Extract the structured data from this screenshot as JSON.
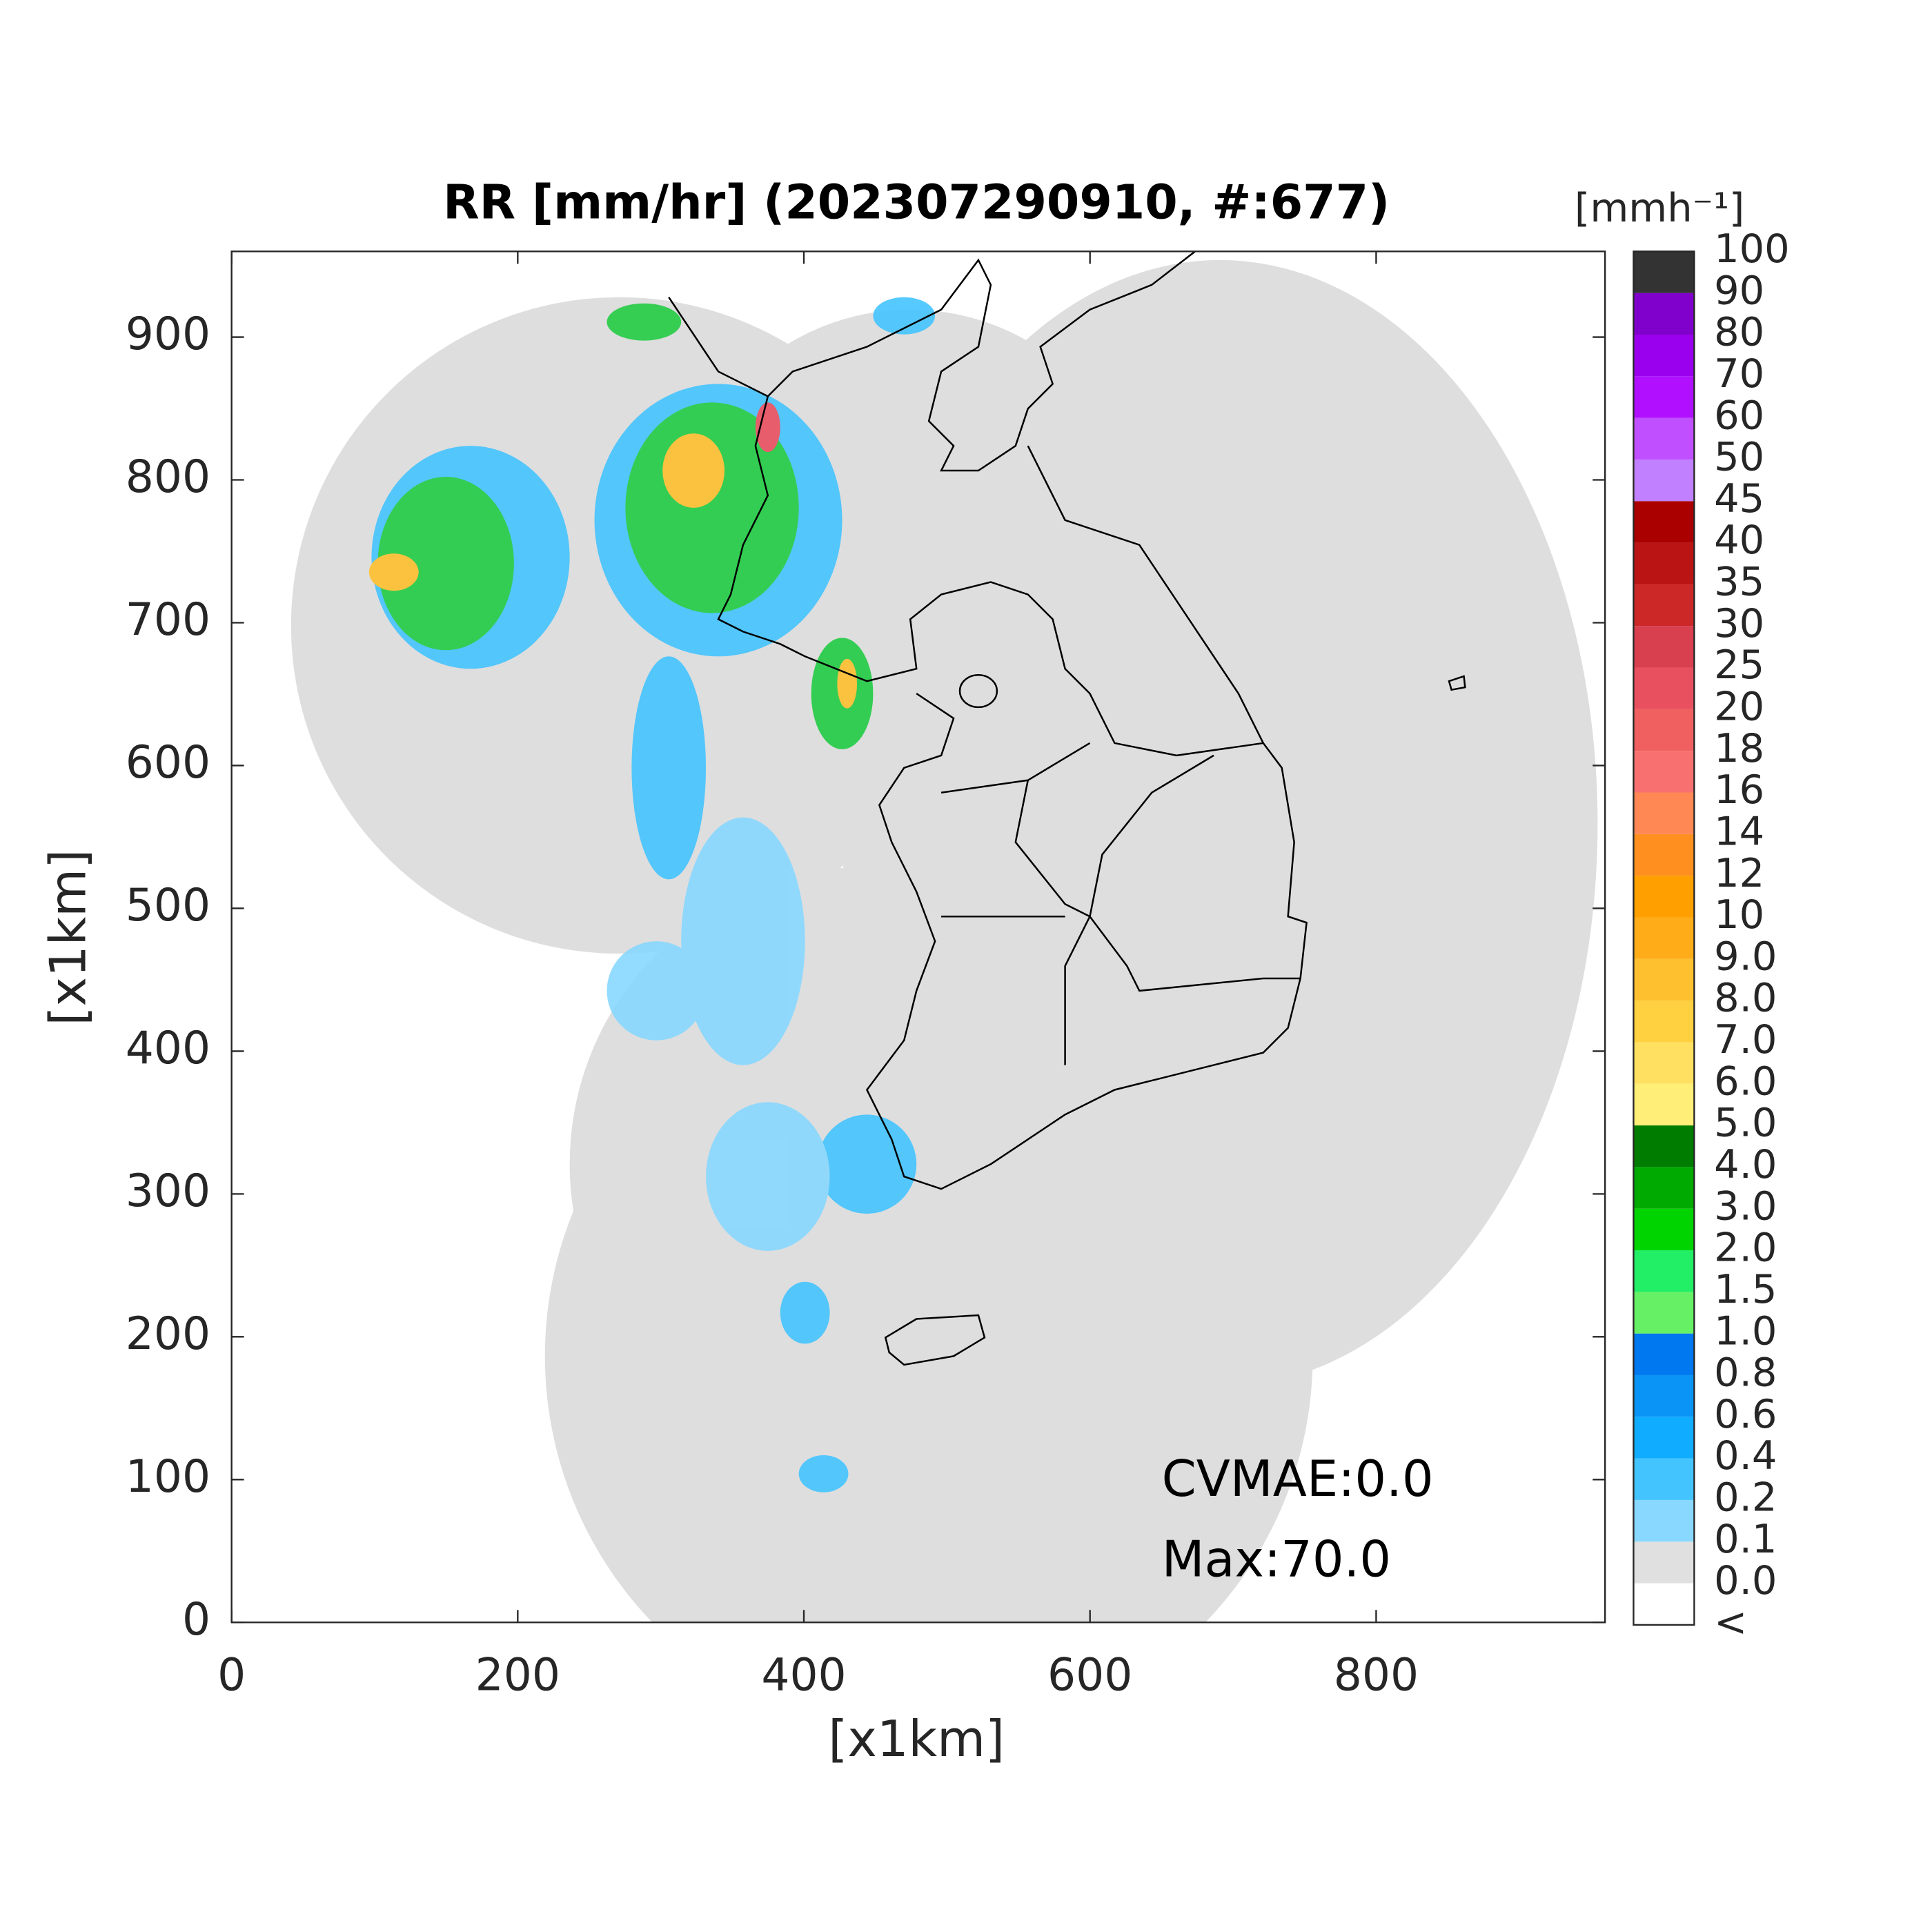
{
  "title": "RR [mm/hr] (202307290910, #:677)",
  "x_axis": {
    "label": "[x1km]",
    "lim": [
      0,
      960
    ],
    "ticks": [
      0,
      200,
      400,
      600,
      800
    ]
  },
  "y_axis": {
    "label": "[x1km]",
    "lim": [
      0,
      960
    ],
    "ticks": [
      0,
      100,
      200,
      300,
      400,
      500,
      600,
      700,
      800,
      900
    ]
  },
  "colorbar": {
    "unit": "[mmh⁻¹]",
    "labels": [
      "<",
      "0.0",
      "0.1",
      "0.2",
      "0.4",
      "0.6",
      "0.8",
      "1.0",
      "1.5",
      "2.0",
      "3.0",
      "4.0",
      "5.0",
      "6.0",
      "7.0",
      "8.0",
      "9.0",
      "10",
      "12",
      "14",
      "16",
      "18",
      "20",
      "25",
      "30",
      "35",
      "40",
      "45",
      "50",
      "60",
      "70",
      "80",
      "90",
      "100"
    ],
    "colors": [
      "#ffffff",
      "#e0e0e0",
      "#88d8ff",
      "#44c4ff",
      "#10acff",
      "#0a94f5",
      "#0078f0",
      "#66f066",
      "#22ee66",
      "#00d400",
      "#00aa00",
      "#007c00",
      "#ffee77",
      "#ffe060",
      "#ffd040",
      "#ffc030",
      "#ffac18",
      "#ffa000",
      "#ff9020",
      "#ff8855",
      "#f87070",
      "#f06060",
      "#e85060",
      "#d84050",
      "#cc2828",
      "#bb1414",
      "#aa0000",
      "#c080ff",
      "#c050ff",
      "#b010ff",
      "#9a00ee",
      "#8000cc",
      "#333333"
    ]
  },
  "annotations": [
    "CVMAE:0.0",
    "Max:70.0"
  ]
}
